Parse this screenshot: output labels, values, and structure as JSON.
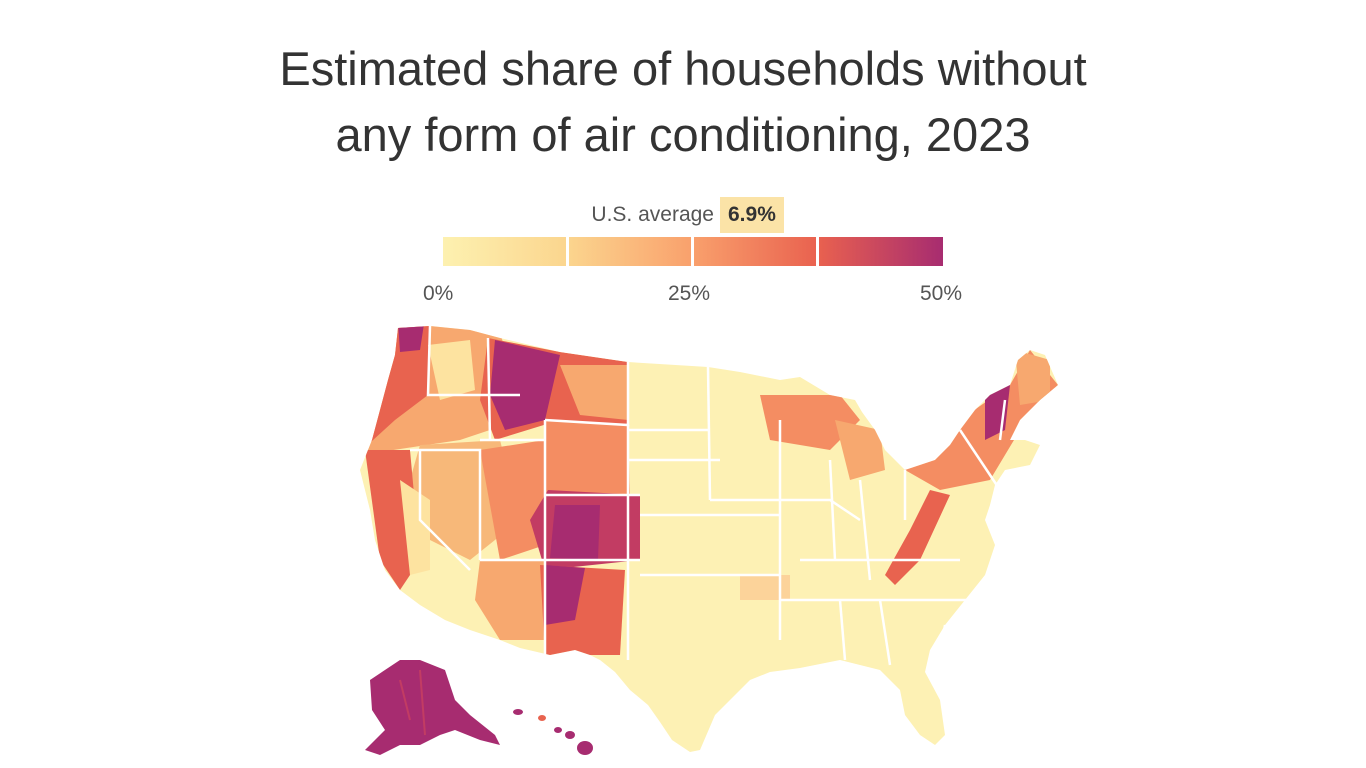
{
  "title": {
    "line1": "Estimated share of households without",
    "line2": "any form of air conditioning, 2023"
  },
  "legend": {
    "average_label": "U.S. average",
    "average_value": "6.9%",
    "average_value_pct": 6.9,
    "scale_range_pct": [
      0,
      50
    ],
    "scale_colors": [
      "#fdf1b0",
      "#fbd58e",
      "#f9a06c",
      "#e9614f",
      "#a72c70"
    ],
    "ticks": [
      {
        "label": "0%"
      },
      {
        "label": "25%"
      },
      {
        "label": "50%"
      }
    ]
  },
  "map": {
    "region": "United States counties (with Alaska and Hawaii insets)",
    "border_color": "#ffffff",
    "background_color": "#ffffff"
  }
}
